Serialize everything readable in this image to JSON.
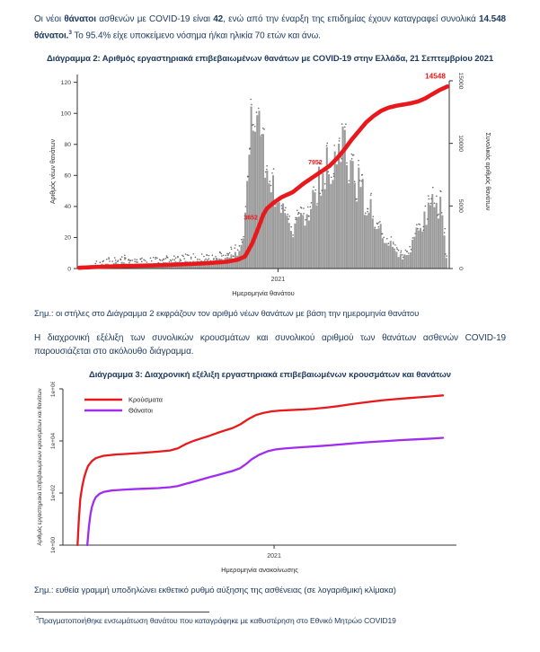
{
  "page": {
    "para1": {
      "segments": [
        {
          "text": "Οι νέοι "
        },
        {
          "text": "θάνατοι"
        },
        {
          "text": " ασθενών με COVID-19 είναι "
        },
        {
          "text": "42"
        },
        {
          "text": ", ενώ από την έναρξη της επιδημίας έχουν καταγραφεί συνολικά "
        },
        {
          "text": "14.548 θάνατοι."
        },
        {
          "text": "3"
        },
        {
          "text": "  Το 95.4% είχε υποκείμενο νόσημα ή/και ηλικία 70 ετών και άνω."
        }
      ]
    },
    "note_diagram2": "Σημ.: οι στήλες στο Διάγραμμα 2 εκφράζουν τον αριθμό νέων θανάτων με βάση την ημερομηνία θανάτου",
    "para2": "Η διαχρονική εξέλιξη των συνολικών κρουσμάτων και συνολικού αριθμού των θανάτων ασθενών COVID-19 παρουσιάζεται στο ακόλουθο διάγραμμα.",
    "note_diagram3": "Σημ.: ευθεία γραμμή υποδηλώνει εκθετικό ρυθμό αύξησης της ασθένειας (σε λογαριθμική κλίμακα)",
    "footnote": {
      "marker": "3",
      "text": "Πραγματοποιήθηκε ενσωμάτωση θανάτου που καταγράφηκε με καθυστέρηση στο Εθνικό Μητρώο COVID19"
    }
  },
  "chart_data": [
    {
      "type": "bar",
      "title": "Διάγραμμα 2: Αριθμός εργαστηριακά επιβεβαιωμένων θανάτων με COVID-19 στην Ελλάδα, 21 Σεπτεμβρίου 2021",
      "xlabel": "Ημερομηνία θανάτου",
      "x_ticks": [
        "2021"
      ],
      "ylabel_left": "Αριθμός νέων θανάτων",
      "ylabel_right": "Συνολικός αριθμός θανάτων",
      "yticks_left": [
        0,
        20,
        40,
        60,
        80,
        100,
        120
      ],
      "yticks_right": [
        0,
        5000,
        10000,
        15000
      ],
      "ylim_left": [
        0,
        125
      ],
      "ylim_right": [
        0,
        15500
      ],
      "bar_color": "#9a9a9a",
      "marker_color": "#4d4d4d",
      "line_color": "#e8191c",
      "bars_anchors": [
        [
          0,
          0.6
        ],
        [
          0.03,
          1.5
        ],
        [
          0.06,
          2.5
        ],
        [
          0.08,
          3
        ],
        [
          0.1,
          4
        ],
        [
          0.13,
          3
        ],
        [
          0.16,
          2.5
        ],
        [
          0.2,
          3
        ],
        [
          0.24,
          3.5
        ],
        [
          0.28,
          4
        ],
        [
          0.32,
          4.5
        ],
        [
          0.36,
          5
        ],
        [
          0.39,
          6
        ],
        [
          0.41,
          7
        ],
        [
          0.43,
          10
        ],
        [
          0.445,
          20
        ],
        [
          0.455,
          45
        ],
        [
          0.465,
          80
        ],
        [
          0.472,
          105
        ],
        [
          0.48,
          98
        ],
        [
          0.49,
          82
        ],
        [
          0.5,
          70
        ],
        [
          0.52,
          55
        ],
        [
          0.54,
          42
        ],
        [
          0.56,
          31
        ],
        [
          0.58,
          26
        ],
        [
          0.6,
          28
        ],
        [
          0.62,
          35
        ],
        [
          0.64,
          45
        ],
        [
          0.655,
          55
        ],
        [
          0.67,
          62
        ],
        [
          0.69,
          72
        ],
        [
          0.705,
          85
        ],
        [
          0.715,
          80
        ],
        [
          0.73,
          70
        ],
        [
          0.75,
          60
        ],
        [
          0.77,
          48
        ],
        [
          0.79,
          38
        ],
        [
          0.81,
          29
        ],
        [
          0.83,
          21
        ],
        [
          0.85,
          14
        ],
        [
          0.865,
          9
        ],
        [
          0.88,
          7
        ],
        [
          0.9,
          11
        ],
        [
          0.92,
          22
        ],
        [
          0.935,
          32
        ],
        [
          0.95,
          38
        ],
        [
          0.97,
          41
        ],
        [
          0.985,
          37
        ],
        [
          1,
          7
        ]
      ],
      "line_anchors": [
        [
          0,
          60
        ],
        [
          0.05,
          130
        ],
        [
          0.1,
          180
        ],
        [
          0.15,
          215
        ],
        [
          0.2,
          250
        ],
        [
          0.25,
          300
        ],
        [
          0.3,
          360
        ],
        [
          0.35,
          430
        ],
        [
          0.4,
          540
        ],
        [
          0.43,
          700
        ],
        [
          0.45,
          950
        ],
        [
          0.47,
          2000
        ],
        [
          0.49,
          3500
        ],
        [
          0.5,
          4300
        ],
        [
          0.51,
          4800
        ],
        [
          0.53,
          5300
        ],
        [
          0.55,
          5700
        ],
        [
          0.58,
          6100
        ],
        [
          0.61,
          6800
        ],
        [
          0.64,
          7400
        ],
        [
          0.66,
          7800
        ],
        [
          0.68,
          8200
        ],
        [
          0.7,
          8800
        ],
        [
          0.72,
          9500
        ],
        [
          0.74,
          10300
        ],
        [
          0.76,
          11000
        ],
        [
          0.78,
          11700
        ],
        [
          0.8,
          12200
        ],
        [
          0.82,
          12600
        ],
        [
          0.84,
          12850
        ],
        [
          0.86,
          13000
        ],
        [
          0.88,
          13100
        ],
        [
          0.9,
          13200
        ],
        [
          0.92,
          13350
        ],
        [
          0.94,
          13600
        ],
        [
          0.96,
          13950
        ],
        [
          0.98,
          14280
        ],
        [
          1,
          14548
        ]
      ],
      "annotations": [
        {
          "text": "3652",
          "t": 0.49,
          "value": 4000,
          "bold": false
        },
        {
          "text": "7952",
          "t": 0.665,
          "value": 8400,
          "bold": false
        },
        {
          "text": "14548",
          "t": 0.995,
          "value": 14548,
          "bold": true
        }
      ]
    },
    {
      "type": "line",
      "title": "Διάγραμμα 3: Διαχρονική εξέλιξη εργαστηριακά επιβεβαιωμένων κρουσμάτων και θανάτων",
      "xlabel": "Ημερομηνία ανακοίνωσης",
      "x_ticks": [
        "2021"
      ],
      "ylabel": "Αριθμός εργαστηριακά επιβεβαιωμένων κρουσμάτων και θανάτων",
      "yscale": "log",
      "yticks": [
        {
          "label": "1e+00",
          "exp": 0
        },
        {
          "label": "1e+02",
          "exp": 2
        },
        {
          "label": "1e+04",
          "exp": 4
        },
        {
          "label": "1e+06",
          "exp": 6
        }
      ],
      "legend": [
        {
          "label": "Κρούσματα",
          "color": "#e8191c"
        },
        {
          "label": "Θάνατοι",
          "color": "#a02cf0"
        }
      ],
      "series": [
        {
          "name": "Κρούσματα",
          "color": "#e8191c",
          "points": [
            [
              0.033,
              1
            ],
            [
              0.036,
              8
            ],
            [
              0.04,
              60
            ],
            [
              0.045,
              180
            ],
            [
              0.05,
              400
            ],
            [
              0.055,
              700
            ],
            [
              0.06,
              1100
            ],
            [
              0.07,
              1700
            ],
            [
              0.08,
              2200
            ],
            [
              0.1,
              2700
            ],
            [
              0.13,
              3000
            ],
            [
              0.16,
              3200
            ],
            [
              0.2,
              3500
            ],
            [
              0.24,
              3900
            ],
            [
              0.27,
              4300
            ],
            [
              0.29,
              5200
            ],
            [
              0.31,
              7500
            ],
            [
              0.33,
              10000
            ],
            [
              0.35,
              12500
            ],
            [
              0.37,
              15500
            ],
            [
              0.39,
              20000
            ],
            [
              0.41,
              25000
            ],
            [
              0.43,
              31000
            ],
            [
              0.45,
              43000
            ],
            [
              0.47,
              68000
            ],
            [
              0.49,
              98000
            ],
            [
              0.51,
              120000
            ],
            [
              0.53,
              136000
            ],
            [
              0.55,
              146000
            ],
            [
              0.58,
              154000
            ],
            [
              0.61,
              161000
            ],
            [
              0.64,
              173000
            ],
            [
              0.67,
              191000
            ],
            [
              0.7,
              216000
            ],
            [
              0.73,
              251000
            ],
            [
              0.76,
              289000
            ],
            [
              0.79,
              330000
            ],
            [
              0.82,
              371000
            ],
            [
              0.85,
              406000
            ],
            [
              0.88,
              441000
            ],
            [
              0.91,
              476000
            ],
            [
              0.94,
              515000
            ],
            [
              0.97,
              560000
            ]
          ]
        },
        {
          "name": "Θάνατοι",
          "color": "#a02cf0",
          "points": [
            [
              0.058,
              1
            ],
            [
              0.062,
              5
            ],
            [
              0.066,
              15
            ],
            [
              0.07,
              30
            ],
            [
              0.075,
              50
            ],
            [
              0.08,
              70
            ],
            [
              0.09,
              95
            ],
            [
              0.1,
              110
            ],
            [
              0.12,
              125
            ],
            [
              0.15,
              135
            ],
            [
              0.18,
              142
            ],
            [
              0.21,
              148
            ],
            [
              0.24,
              155
            ],
            [
              0.27,
              168
            ],
            [
              0.29,
              185
            ],
            [
              0.31,
              225
            ],
            [
              0.33,
              270
            ],
            [
              0.35,
              330
            ],
            [
              0.37,
              400
            ],
            [
              0.39,
              480
            ],
            [
              0.41,
              580
            ],
            [
              0.43,
              700
            ],
            [
              0.45,
              900
            ],
            [
              0.465,
              1300
            ],
            [
              0.48,
              2000
            ],
            [
              0.5,
              3000
            ],
            [
              0.52,
              4000
            ],
            [
              0.54,
              4700
            ],
            [
              0.56,
              5100
            ],
            [
              0.59,
              5500
            ],
            [
              0.62,
              5900
            ],
            [
              0.65,
              6300
            ],
            [
              0.68,
              6800
            ],
            [
              0.71,
              7400
            ],
            [
              0.74,
              8100
            ],
            [
              0.77,
              8800
            ],
            [
              0.8,
              9400
            ],
            [
              0.83,
              10000
            ],
            [
              0.86,
              10700
            ],
            [
              0.89,
              11300
            ],
            [
              0.92,
              11900
            ],
            [
              0.95,
              12600
            ],
            [
              0.97,
              13200
            ]
          ]
        }
      ]
    }
  ]
}
